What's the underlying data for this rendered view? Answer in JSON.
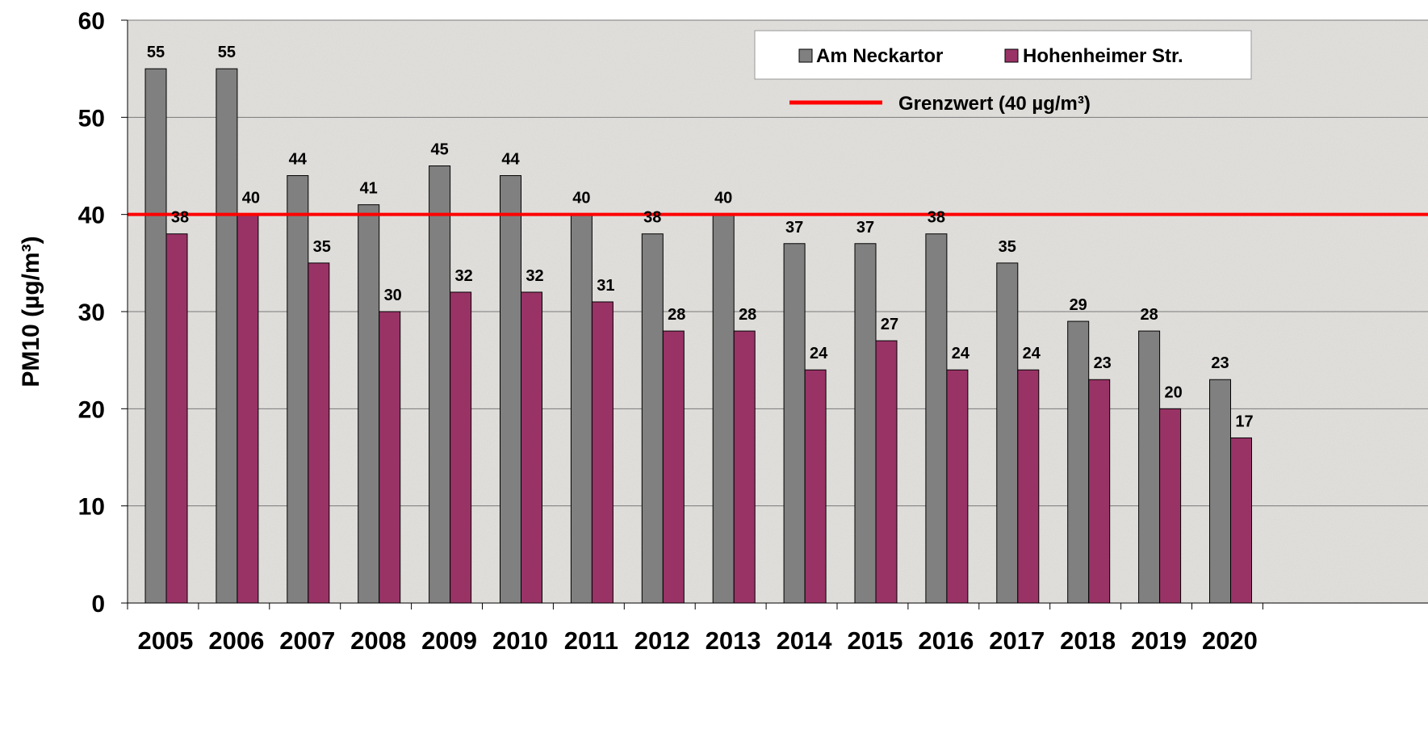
{
  "chart_data": {
    "type": "bar",
    "title": "",
    "ylabel": "PM10 (µg/m³)",
    "xlabel": "",
    "ylim": [
      0,
      60
    ],
    "yticks": [
      0,
      10,
      20,
      30,
      40,
      50,
      60
    ],
    "grid": true,
    "legend_position": "top-right",
    "categories": [
      "2005",
      "2006",
      "2007",
      "2008",
      "2009",
      "2010",
      "2011",
      "2012",
      "2013",
      "2014",
      "2015",
      "2016",
      "2017",
      "2018",
      "2019",
      "2020"
    ],
    "series": [
      {
        "name": "Am Neckartor",
        "color": "#808080",
        "values": [
          55,
          55,
          44,
          41,
          45,
          44,
          40,
          38,
          40,
          37,
          37,
          38,
          35,
          29,
          28,
          23
        ]
      },
      {
        "name": "Hohenheimer Str.",
        "color": "#993366",
        "values": [
          38,
          40,
          35,
          30,
          32,
          32,
          31,
          28,
          28,
          24,
          27,
          24,
          24,
          23,
          20,
          17
        ]
      }
    ],
    "reference_line": {
      "name": "Grenzwert (40 µg/m³)",
      "value": 40,
      "color": "#ff0000"
    }
  }
}
